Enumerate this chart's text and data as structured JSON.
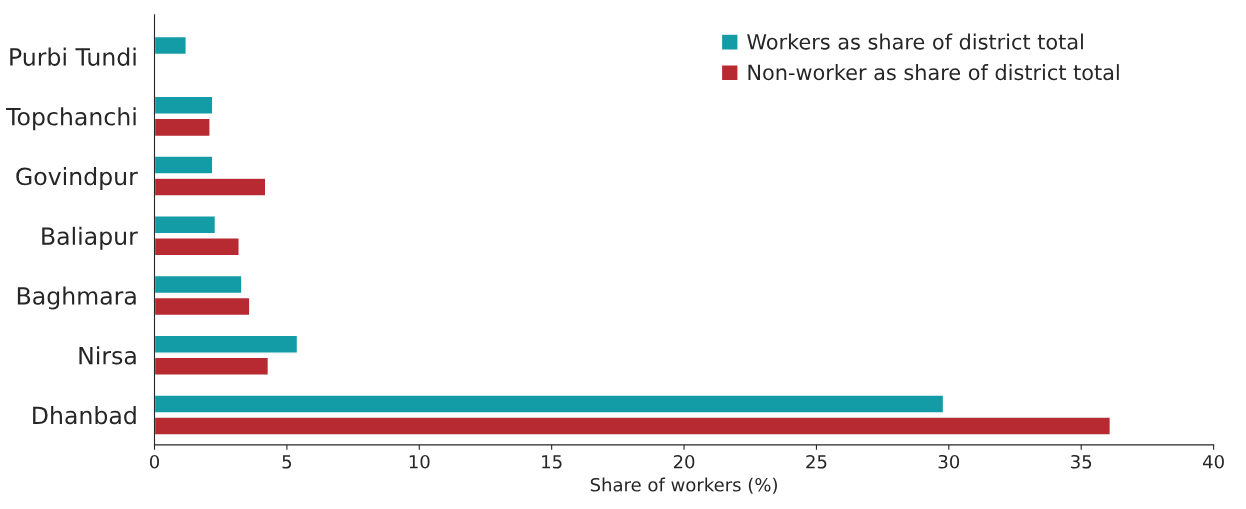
{
  "chart_data": {
    "type": "bar",
    "orientation": "horizontal",
    "xlabel": "Share of workers (%)",
    "categories": [
      "Purbi Tundi",
      "Topchanchi",
      "Govindpur",
      "Baliapur",
      "Baghmara",
      "Nirsa",
      "Dhanbad"
    ],
    "series": [
      {
        "name": "Workers as share of district total",
        "color": "#139ca6",
        "values": [
          1.2,
          2.2,
          2.2,
          2.3,
          3.3,
          5.4,
          29.8
        ]
      },
      {
        "name": "Non-worker as share of district total",
        "color": "#b72a31",
        "values": [
          null,
          2.1,
          4.2,
          3.2,
          3.6,
          4.3,
          36.1
        ]
      }
    ],
    "xlim": [
      0,
      40
    ],
    "xticks": [
      0,
      5,
      10,
      15,
      20,
      25,
      30,
      35,
      40
    ],
    "grid": false,
    "legend": "top right"
  }
}
